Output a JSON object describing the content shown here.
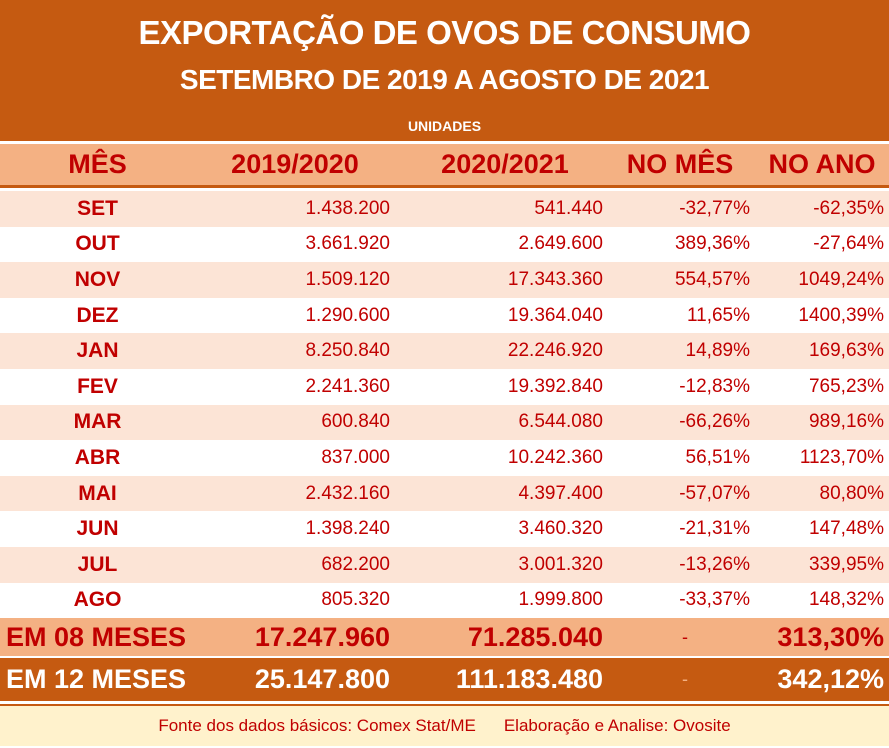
{
  "colors": {
    "title_bg": "#C55A11",
    "header_bg": "#F4B183",
    "row_odd": "#FCE4D6",
    "text": "#C00000",
    "footer_bg": "#FFF2CC"
  },
  "chart_data": {
    "type": "table",
    "title": "EXPORTAÇÃO DE OVOS DE CONSUMO",
    "subtitle": "SETEMBRO DE 2019 A AGOSTO DE 2021",
    "unit": "UNIDADES",
    "columns": [
      "MÊS",
      "2019/2020",
      "2020/2021",
      "NO MÊS",
      "NO ANO"
    ],
    "rows": [
      [
        "SET",
        "1.438.200",
        "541.440",
        "-32,77%",
        "-62,35%"
      ],
      [
        "OUT",
        "3.661.920",
        "2.649.600",
        "389,36%",
        "-27,64%"
      ],
      [
        "NOV",
        "1.509.120",
        "17.343.360",
        "554,57%",
        "1049,24%"
      ],
      [
        "DEZ",
        "1.290.600",
        "19.364.040",
        "11,65%",
        "1400,39%"
      ],
      [
        "JAN",
        "8.250.840",
        "22.246.920",
        "14,89%",
        "169,63%"
      ],
      [
        "FEV",
        "2.241.360",
        "19.392.840",
        "-12,83%",
        "765,23%"
      ],
      [
        "MAR",
        "600.840",
        "6.544.080",
        "-66,26%",
        "989,16%"
      ],
      [
        "ABR",
        "837.000",
        "10.242.360",
        "56,51%",
        "1123,70%"
      ],
      [
        "MAI",
        "2.432.160",
        "4.397.400",
        "-57,07%",
        "80,80%"
      ],
      [
        "JUN",
        "1.398.240",
        "3.460.320",
        "-21,31%",
        "147,48%"
      ],
      [
        "JUL",
        "682.200",
        "3.001.320",
        "-13,26%",
        "339,95%"
      ],
      [
        "AGO",
        "805.320",
        "1.999.800",
        "-33,37%",
        "148,32%"
      ]
    ],
    "totals": [
      [
        "EM 08 MESES",
        "17.247.960",
        "71.285.040",
        "-",
        "313,30%"
      ],
      [
        "EM 12 MESES",
        "25.147.800",
        "111.183.480",
        "-",
        "342,12%"
      ]
    ]
  },
  "footer": {
    "source": "Fonte dos dados básicos: Comex Stat/ME",
    "credit": "Elaboração e Analise: Ovosite"
  }
}
